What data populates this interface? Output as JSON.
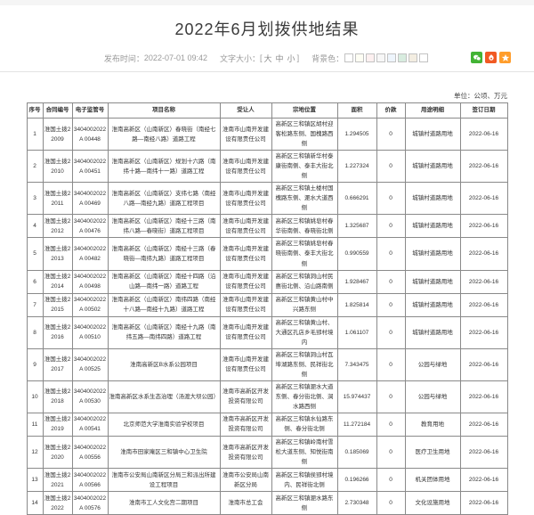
{
  "page": {
    "title": "2022年6月划拨供地结果",
    "meta": {
      "publish_label": "发布时间：",
      "publish_time": "2022-07-01 09:42",
      "font_size_label": "文字大小：",
      "bracket_open": "[",
      "bracket_close": "]",
      "font_size_options": [
        "大",
        "中",
        "小"
      ],
      "bg_color_label": "背景色：",
      "bg_swatches": [
        "#ffffff",
        "#fdfdf3",
        "#fdf0f0",
        "#f7f7f7",
        "#eef5fc",
        "#d8ecdf",
        "#f3ede1",
        "#ffffff"
      ]
    },
    "share_icons": [
      {
        "name": "wechat-share-icon",
        "color": "#43b335",
        "glyph": "bubble"
      },
      {
        "name": "weibo-share-icon",
        "color": "#f15a24",
        "glyph": "flame"
      },
      {
        "name": "favorite-star-icon",
        "color": "#ff9d2b",
        "glyph": "star"
      }
    ],
    "unit_note": "单位：公顷、万元"
  },
  "table": {
    "headers": [
      "序号",
      "合同编号",
      "电子监管号",
      "项目名称",
      "受让人",
      "宗地位置",
      "面积",
      "价款",
      "用途明细",
      "签订日期"
    ],
    "rows": [
      [
        "1",
        "淮国土拨2 2009",
        "3404002022A 00448",
        "淮南高新区（山南新区）春晓街（南经七路—南经八路）道路工程",
        "淮南市山南开发建设有限责任公司",
        "高新区三和镇区胡村迎客松路东侧、国槐路西侧",
        "1.294505",
        "0",
        "城镇村道路用地",
        "2022-06-16"
      ],
      [
        "2",
        "淮国土拨2 2010",
        "3404002022A 00451",
        "淮南高新区（山南新区）规划十六路（南纬十路—南纬十一路）道路工程",
        "淮南市山南开发建设有限责任公司",
        "高新区三和镇新华村泰康街南侧、泰丰大街北侧",
        "1.227324",
        "0",
        "城镇村道路用地",
        "2022-06-16"
      ],
      [
        "3",
        "淮国土拨2 2011",
        "3404002022A 00469",
        "淮南高新区（山南新区）支纬七路（南经八路—南经九路）道路工程项目",
        "淮南市山南开发建设有限责任公司",
        "高新区三和镇土楼村国槐路东侧、淝水大道西侧",
        "0.666291",
        "0",
        "城镇村道路用地",
        "2022-06-16"
      ],
      [
        "4",
        "淮国土拨2 2012",
        "3404002022A 00476",
        "淮南高新区（山南新区）南经十三路（南纬八路—春晓街）道路工程项目",
        "淮南市山南开发建设有限责任公司",
        "高新区三和镇姚皂村春华街南侧、春晓街北侧",
        "1.325687",
        "0",
        "城镇村道路用地",
        "2022-06-16"
      ],
      [
        "5",
        "淮国土拨2 2013",
        "3404002022A 00482",
        "淮南高新区（山南新区）南经十三路（春晓街—南纬九路）道路工程项目",
        "淮南市山南开发建设有限责任公司",
        "高新区三和镇姚皂村春晓街南侧、泰丰大街北侧",
        "0.990559",
        "0",
        "城镇村道路用地",
        "2022-06-16"
      ],
      [
        "6",
        "淮国土拨2 2014",
        "3404002022A 00498",
        "淮南高新区（山南新区）南经十四路（沿山路—南纬一路）道路工程",
        "淮南市山南开发建设有限责任公司",
        "高新区三和镇洞山村民惠街北侧、沿山路南侧",
        "1.928467",
        "0",
        "城镇村道路用地",
        "2022-06-16"
      ],
      [
        "7",
        "淮国土拨2 2015",
        "3404002022A 00502",
        "淮南高新区（山南新区）南纬四路（南经十八路—南经十九路）道路工程",
        "淮南市山南开发建设有限责任公司",
        "高新区三和镇黄山村中兴路东侧",
        "1.825814",
        "0",
        "城镇村道路用地",
        "2022-06-16"
      ],
      [
        "8",
        "淮国土拨2 2016",
        "3404002022A 00510",
        "淮南高新区（山南新区）南经十九路（南纬五路—南纬四路）道路工程",
        "淮南市山南开发建设有限责任公司",
        "高新区三和镇黄山村、大通区孔店乡毛郢村境内",
        "1.061107",
        "0",
        "城镇村道路用地",
        "2022-06-16"
      ],
      [
        "9",
        "淮国土拨2 2017",
        "3404002022A 00525",
        "淮南高新区B水系公园项目",
        "淮南市山南开发建设有限责任公司",
        "高新区三和镇洞山村瓦埠湖路东侧、民祥街北侧",
        "7.343475",
        "0",
        "公园与绿地",
        "2022-06-16"
      ],
      [
        "10",
        "淮国土拨2 2018",
        "3404002022A 00530",
        "淮南高新区水系生态治理（汤渡大坝公园）",
        "淮南市高新区开发投资有限公司",
        "高新区三和镇淝水大道东侧、春分街北侧、涧水路西侧",
        "15.974437",
        "0",
        "公园与绿地",
        "2022-06-16"
      ],
      [
        "11",
        "淮国土拨2 2019",
        "3404002022A 00541",
        "北京师范大学淮南实验学校项目",
        "淮南市高新区开发投资有限公司",
        "高新区三和镇水仙路东侧、春分街北侧",
        "11.272184",
        "0",
        "教育用地",
        "2022-06-16"
      ],
      [
        "12",
        "淮国土拨2 2020",
        "3404002022A 00556",
        "淮南市田家庵区三和镇中心卫生院",
        "淮南市高新区开发投资有限公司",
        "高新区三和镇岭南村雪松大道东侧、知悦街南侧",
        "0.185069",
        "0",
        "医疗卫生用地",
        "2022-06-16"
      ],
      [
        "13",
        "淮国土拨2 2021",
        "3404002022A 00566",
        "淮南市公安局山南新区分局三和派出所建设工程项目",
        "淮南市公安局山南新区分局",
        "高新区三和镇侯郢村境内、民祥街北侧",
        "0.196266",
        "0",
        "机关团体用地",
        "2022-06-16"
      ],
      [
        "14",
        "淮国土拨2 2022",
        "3404002022A 00576",
        "淮南市工人文化宫二期项目",
        "淮南市总工会",
        "高新区三和镇淝水路东侧",
        "2.730348",
        "0",
        "文化设施用地",
        "2022-06-16"
      ]
    ]
  }
}
